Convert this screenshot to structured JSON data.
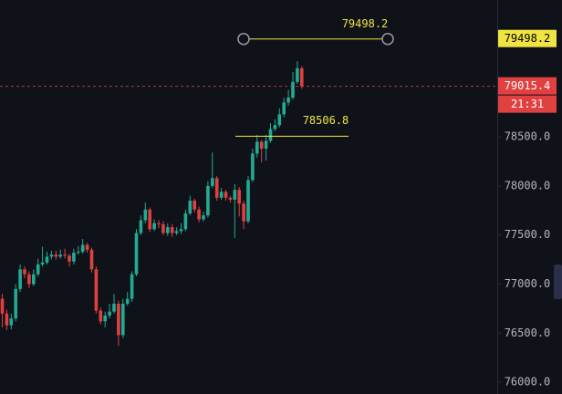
{
  "chart_data": {
    "type": "candlestick",
    "up_color": "#22ab94",
    "down_color": "#e0403f",
    "open": [
      76850,
      76700,
      76580,
      76650,
      76950,
      77150,
      77100,
      77000,
      77100,
      77200,
      77220,
      77280,
      77300,
      77280,
      77300,
      77290,
      77230,
      77320,
      77330,
      77400,
      77350,
      77150,
      76730,
      76620,
      76680,
      76720,
      76800,
      76480,
      76800,
      76850,
      77100,
      77520,
      77650,
      77760,
      77560,
      77620,
      77610,
      77520,
      77580,
      77520,
      77540,
      77560,
      77720,
      77850,
      77760,
      77660,
      77700,
      78000,
      78080,
      77880,
      77940,
      77880,
      77860,
      77960,
      77820,
      77640,
      78060,
      78330,
      78450,
      78380,
      78460,
      78580,
      78620,
      78730,
      78850,
      78900,
      79060,
      79200
    ],
    "high": [
      76900,
      76740,
      76700,
      77000,
      77200,
      77180,
      77130,
      77150,
      77260,
      77380,
      77330,
      77340,
      77340,
      77350,
      77360,
      77310,
      77360,
      77390,
      77460,
      77420,
      77370,
      77180,
      76760,
      76720,
      76800,
      76900,
      76830,
      76850,
      76920,
      77130,
      77560,
      77700,
      77830,
      77780,
      77660,
      77650,
      77640,
      77620,
      77610,
      77580,
      77620,
      77760,
      77900,
      77870,
      77790,
      77740,
      78050,
      78340,
      78100,
      77980,
      77960,
      77900,
      78020,
      77990,
      77850,
      78100,
      78380,
      78520,
      78470,
      78520,
      78640,
      78680,
      78790,
      78900,
      78980,
      79160,
      79270,
      79220
    ],
    "low": [
      76560,
      76530,
      76540,
      76620,
      76920,
      77060,
      76960,
      76980,
      77080,
      77180,
      77200,
      77250,
      77250,
      77260,
      77260,
      77180,
      77200,
      77300,
      77310,
      77320,
      77120,
      76700,
      76590,
      76560,
      76650,
      76700,
      76370,
      76450,
      76780,
      76820,
      77080,
      77500,
      77620,
      77530,
      77540,
      77570,
      77500,
      77490,
      77480,
      77500,
      77510,
      77540,
      77700,
      77730,
      77630,
      77640,
      77680,
      77980,
      77850,
      77860,
      77850,
      77830,
      77470,
      77690,
      77560,
      77620,
      78040,
      78290,
      78240,
      78260,
      78440,
      78560,
      78600,
      78700,
      78820,
      78880,
      79040,
      78990
    ],
    "close": [
      76700,
      76580,
      76650,
      76950,
      77150,
      77100,
      77000,
      77100,
      77200,
      77220,
      77280,
      77300,
      77280,
      77300,
      77290,
      77230,
      77320,
      77330,
      77400,
      77350,
      77150,
      76730,
      76620,
      76680,
      76720,
      76800,
      76480,
      76800,
      76850,
      77100,
      77520,
      77650,
      77760,
      77560,
      77620,
      77610,
      77520,
      77580,
      77520,
      77540,
      77560,
      77720,
      77850,
      77760,
      77660,
      77700,
      78000,
      78080,
      77880,
      77940,
      77880,
      77860,
      77960,
      77820,
      77640,
      78060,
      78330,
      78450,
      78380,
      78460,
      78580,
      78620,
      78730,
      78850,
      78900,
      79060,
      79200,
      79015.4
    ],
    "ylim": [
      75880,
      79895
    ],
    "yticks": [
      {
        "value": 76000,
        "label": "76000.0"
      },
      {
        "value": 76500,
        "label": "76500.0"
      },
      {
        "value": 77000,
        "label": "77000.0"
      },
      {
        "value": 77500,
        "label": "77500.0"
      },
      {
        "value": 78000,
        "label": "78000.0"
      },
      {
        "value": 78500,
        "label": "78500.0"
      }
    ],
    "horizontal_line": 78506.8,
    "line_color": "#f0e442",
    "ruler_line": 79498.2,
    "countdown": "21:31"
  }
}
